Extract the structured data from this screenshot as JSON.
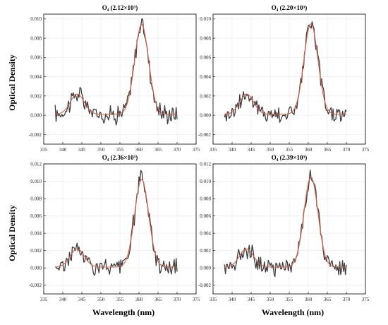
{
  "figure": {
    "ylabel": "Optical Density",
    "xlabel": "Wavelength (nm)"
  },
  "colors": {
    "measured": "#3d3d3d",
    "fit": "#d8634a",
    "grid": "#e6e6e6"
  },
  "chart_data": [
    {
      "type": "line",
      "title": "O₄ (2.12×10³)",
      "xlim": [
        335,
        375
      ],
      "ylim": [
        -0.003,
        0.0105
      ],
      "xticks": [
        335,
        340,
        345,
        350,
        355,
        360,
        365,
        370,
        375
      ],
      "xtick_labels": [
        "335",
        "340",
        "345",
        "350",
        "355",
        "360",
        "365",
        "370",
        "375"
      ],
      "yticks": [
        -0.002,
        0.0,
        0.002,
        0.004,
        0.006,
        0.008,
        0.01
      ],
      "ytick_labels": [
        "-0.002",
        "0.000",
        "0.002",
        "0.004",
        "0.006",
        "0.008",
        "0.010"
      ],
      "grid": true,
      "peak": 0.0093
    },
    {
      "type": "line",
      "title": "O₄ (2.20×10³)",
      "xlim": [
        335,
        375
      ],
      "ylim": [
        -0.003,
        0.0105
      ],
      "xticks": [
        335,
        340,
        345,
        350,
        355,
        360,
        365,
        370,
        375
      ],
      "xtick_labels": [
        "335",
        "340",
        "345",
        "350",
        "355",
        "360",
        "365",
        "370",
        "375"
      ],
      "yticks": [
        -0.002,
        0.0,
        0.002,
        0.004,
        0.006,
        0.008,
        0.01
      ],
      "ytick_labels": [
        "-0.002",
        "0.000",
        "0.002",
        "0.004",
        "0.006",
        "0.008",
        "0.010"
      ],
      "grid": true,
      "peak": 0.0094
    },
    {
      "type": "line",
      "title": "O₄ (2.36×10³)",
      "xlim": [
        335,
        375
      ],
      "ylim": [
        -0.003,
        0.012
      ],
      "xticks": [
        335,
        340,
        345,
        350,
        355,
        360,
        365,
        370,
        375
      ],
      "xtick_labels": [
        "335",
        "340",
        "345",
        "350",
        "355",
        "360",
        "365",
        "370",
        "375"
      ],
      "yticks": [
        -0.002,
        0.0,
        0.002,
        0.004,
        0.006,
        0.008,
        0.01,
        0.012
      ],
      "ytick_labels": [
        "-0.002",
        "0.000",
        "0.002",
        "0.004",
        "0.006",
        "0.008",
        "0.010",
        "0.012"
      ],
      "grid": true,
      "peak": 0.0101
    },
    {
      "type": "line",
      "title": "O₄ (2.39×10³)",
      "xlim": [
        335,
        375
      ],
      "ylim": [
        -0.003,
        0.012
      ],
      "xticks": [
        335,
        340,
        345,
        350,
        355,
        360,
        365,
        370,
        375
      ],
      "xtick_labels": [
        "335",
        "340",
        "345",
        "350",
        "355",
        "360",
        "365",
        "370",
        "375"
      ],
      "yticks": [
        -0.002,
        0.0,
        0.002,
        0.004,
        0.006,
        0.008,
        0.01,
        0.012
      ],
      "ytick_labels": [
        "-0.002",
        "0.000",
        "0.002",
        "0.004",
        "0.006",
        "0.008",
        "0.010",
        "0.012"
      ],
      "grid": true,
      "peak": 0.0104
    }
  ]
}
